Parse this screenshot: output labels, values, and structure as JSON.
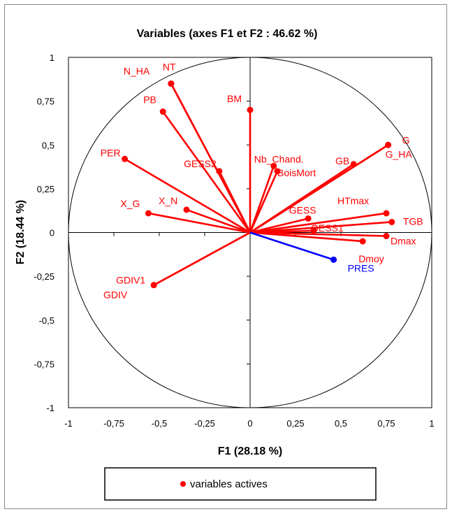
{
  "chart_data": {
    "type": "scatter",
    "title": "Variables (axes F1 et F2 : 46.62 %)",
    "xlabel": "F1 (28.18 %)",
    "ylabel": "F2 (18.44 %)",
    "xlim": [
      -1,
      1
    ],
    "ylim": [
      -1,
      1
    ],
    "xticks": [
      "-1",
      "-0,75",
      "-0,5",
      "-0,25",
      "0",
      "0,25",
      "0,5",
      "0,75",
      "1"
    ],
    "yticks": [
      "1",
      "0,75",
      "0,5",
      "0,25",
      "0",
      "-0,25",
      "-0,5",
      "-0,75",
      "-1"
    ],
    "xtick_values": [
      -1,
      -0.75,
      -0.5,
      -0.25,
      0,
      0.25,
      0.5,
      0.75,
      1
    ],
    "ytick_values": [
      1,
      0.75,
      0.5,
      0.25,
      0,
      -0.25,
      -0.5,
      -0.75,
      -1
    ],
    "unit_circle": true,
    "grid": false,
    "legend": {
      "position": "bottom",
      "entries": [
        "variables actives"
      ]
    },
    "colors": {
      "active": "#ff0000",
      "supplementary": "#0000ff"
    },
    "series": [
      {
        "name": "variables actives",
        "color": "#ff0000",
        "points": [
          {
            "label": "N_HA",
            "x": -0.435,
            "y": 0.85
          },
          {
            "label": "NT",
            "x": -0.435,
            "y": 0.85
          },
          {
            "label": "PB",
            "x": -0.48,
            "y": 0.69
          },
          {
            "label": "BM",
            "x": 0.0,
            "y": 0.7
          },
          {
            "label": "PER",
            "x": -0.69,
            "y": 0.42
          },
          {
            "label": "GESS2",
            "x": -0.17,
            "y": 0.35
          },
          {
            "label": "Nb_Chand.",
            "x": 0.13,
            "y": 0.38
          },
          {
            "label": "BoisMort",
            "x": 0.15,
            "y": 0.35
          },
          {
            "label": "GB",
            "x": 0.57,
            "y": 0.39
          },
          {
            "label": "G",
            "x": 0.76,
            "y": 0.5
          },
          {
            "label": "G_HA",
            "x": 0.76,
            "y": 0.5
          },
          {
            "label": "X_G",
            "x": -0.56,
            "y": 0.11
          },
          {
            "label": "X_N",
            "x": -0.35,
            "y": 0.13
          },
          {
            "label": "GESS",
            "x": 0.32,
            "y": 0.08
          },
          {
            "label": "GESS1",
            "x": 0.35,
            "y": 0.01
          },
          {
            "label": "HTmax",
            "x": 0.75,
            "y": 0.11
          },
          {
            "label": "TGB",
            "x": 0.78,
            "y": 0.06
          },
          {
            "label": "Dmax",
            "x": 0.75,
            "y": -0.02
          },
          {
            "label": "Dmoy",
            "x": 0.62,
            "y": -0.05
          },
          {
            "label": "GDIV1",
            "x": -0.53,
            "y": -0.3
          },
          {
            "label": "GDIV",
            "x": -0.53,
            "y": -0.3
          }
        ]
      },
      {
        "name": "",
        "color": "#0000ff",
        "points": [
          {
            "label": "PRES",
            "x": 0.46,
            "y": -0.155
          }
        ]
      }
    ]
  }
}
